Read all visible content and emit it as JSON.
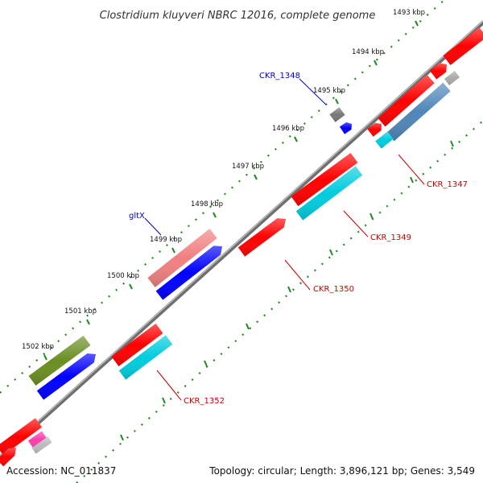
{
  "title": "Clostridium kluyveri NBRC 12016, complete genome",
  "footer": {
    "accession_label": "Accession:",
    "accession": "NC_011837",
    "topology_label": "Topology:",
    "topology": "circular",
    "length_label": "Length:",
    "length": "3,896,121 bp",
    "genes_label": "Genes:",
    "genes": "3,549"
  },
  "ticks": [
    "1493 kbp",
    "1494 kbp",
    "1495 kbp",
    "1496 kbp",
    "1497 kbp",
    "1498 kbp",
    "1499 kbp",
    "1500 kbp",
    "1501 kbp",
    "1502 kbp"
  ],
  "gene_labels": [
    {
      "text": "CKR_1348",
      "color": "#0000cc"
    },
    {
      "text": "CKR_1347",
      "color": "#cc0000"
    },
    {
      "text": "CKR_1349",
      "color": "#cc0000"
    },
    {
      "text": "gltX",
      "color": "#0000cc"
    },
    {
      "text": "CKR_1350",
      "color": "#cc0000"
    },
    {
      "text": "CKR_1352",
      "color": "#cc0000"
    }
  ],
  "colors": {
    "backbone": "#8a8a8a",
    "tick_dots": "#1f8a1f",
    "red_gene": "#ff0000",
    "blue_gene": "#0000ff",
    "cyan_gene": "#00ccdd",
    "steel_gene": "#4f86b8",
    "olive_gene": "#6b8e23",
    "pink_gene": "#f08080",
    "magenta_gene": "#ff3fae",
    "gray_gene": "#777777"
  }
}
